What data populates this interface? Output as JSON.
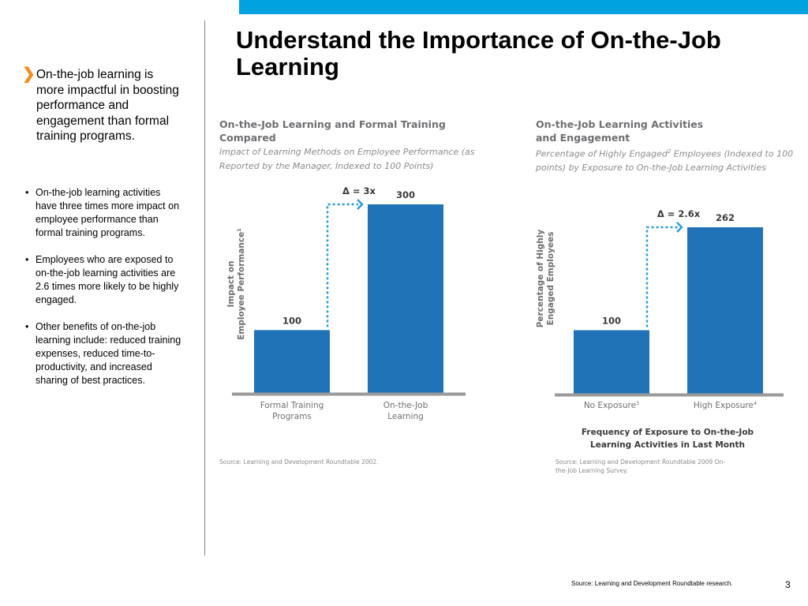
{
  "page": {
    "title": "Understand the Importance of On-the-Job Learning",
    "lead": "On-the-job learning is more impactful in boosting performance and engagement than formal training programs.",
    "bullets": [
      "On-the-job learning activities have three times more impact on employee performance than formal training programs.",
      "Employees who are exposed to on-the-job learning activities are 2.6 times more likely to be highly engaged.",
      "Other benefits of on-the-job learning include: reduced training expenses, reduced time-to-productivity, and increased sharing of best practices."
    ],
    "footer_source": "Source: Learning and Development Roundtable research.",
    "page_number": "3",
    "colors": {
      "bar": "#2173b8",
      "accent": "#00a3e0",
      "arrow": "#2a9bd8",
      "chevron": "#f28c1c"
    }
  },
  "chart_data": [
    {
      "type": "bar",
      "title": "On-the-Job Learning and Formal Training Compared",
      "subtitle": "Impact of Learning Methods on Employee Performance (as Reported by the Manager, Indexed to 100 Points)",
      "xlabel": "",
      "ylabel": "Impact on Employee Performance",
      "ylabel_superscript": "1",
      "categories": [
        "Formal Training Programs",
        "On-the-Job Learning"
      ],
      "values": [
        100,
        300
      ],
      "value_labels": [
        "100",
        "300"
      ],
      "annotation": "Δ = 3x",
      "ylim": [
        0,
        320
      ],
      "source": "Source: Learning and Development Roundtable 2002."
    },
    {
      "type": "bar",
      "title": "On-the-Job Learning Activities and Engagement",
      "subtitle": "Percentage of Highly Engaged² Employees (Indexed to 100 points) by Exposure to On-the-Job Learning Activities",
      "xlabel": "Frequency of Exposure to On-the-Job Learning Activities in Last Month",
      "ylabel": "Percentage of Highly Engaged Employees",
      "categories": [
        "No Exposure",
        "High Exposure"
      ],
      "category_superscripts": [
        "3",
        "4"
      ],
      "values": [
        100,
        262
      ],
      "value_labels": [
        "100",
        "262"
      ],
      "annotation": "Δ = 2.6x",
      "ylim": [
        0,
        280
      ],
      "source": "Source: Learning and Development Roundtable 2009 On-the-Job Learning Survey."
    }
  ]
}
